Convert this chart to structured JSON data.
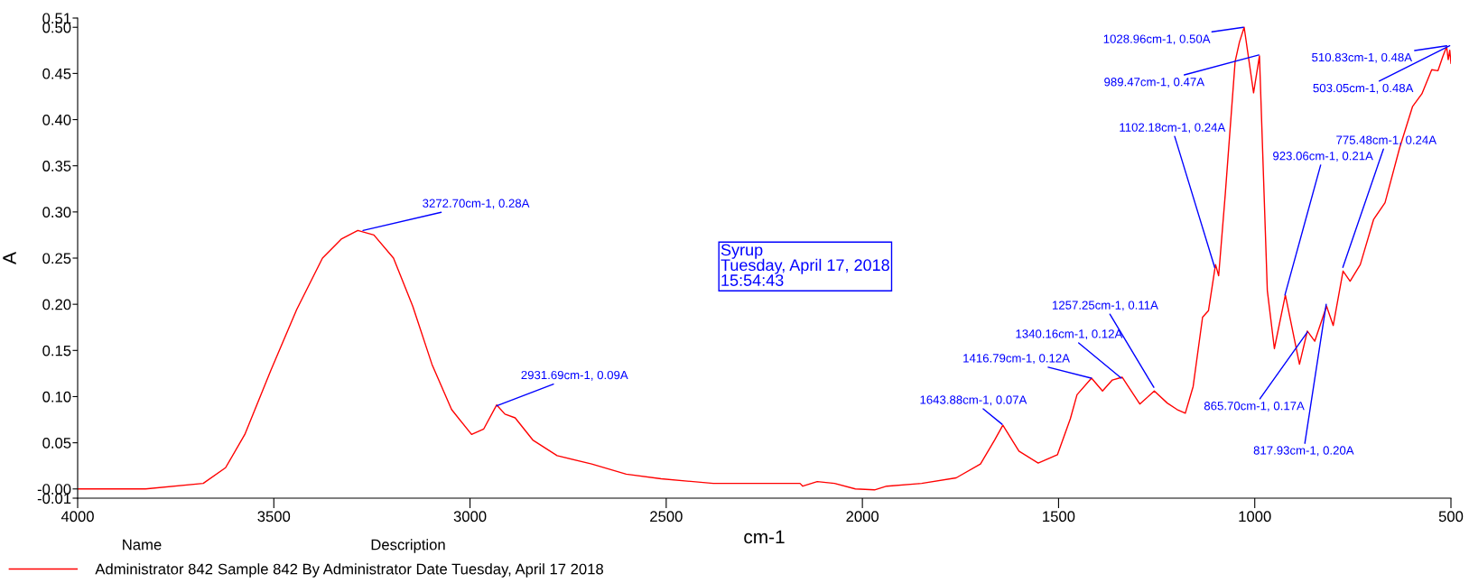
{
  "chart_data": {
    "type": "line",
    "xlabel": "cm-1",
    "ylabel": "A",
    "xlim": [
      4000,
      500
    ],
    "xticks": [
      4000,
      3500,
      3000,
      2500,
      2000,
      1500,
      1000,
      500
    ],
    "ylim": [
      -0.01,
      0.51
    ],
    "yticks": [
      {
        "value": -0.01,
        "label": "-0.01"
      },
      {
        "value": 0,
        "label": "-0.00"
      },
      {
        "value": 0.05,
        "label": "0.05"
      },
      {
        "value": 0.1,
        "label": "0.10"
      },
      {
        "value": 0.15,
        "label": "0.15"
      },
      {
        "value": 0.2,
        "label": "0.20"
      },
      {
        "value": 0.25,
        "label": "0.25"
      },
      {
        "value": 0.3,
        "label": "0.30"
      },
      {
        "value": 0.35,
        "label": "0.35"
      },
      {
        "value": 0.4,
        "label": "0.40"
      },
      {
        "value": 0.45,
        "label": "0.45"
      },
      {
        "value": 0.5,
        "label": "0.50"
      },
      {
        "value": 0.51,
        "label": "0.51"
      }
    ],
    "grid": false,
    "legend": "bottom left",
    "series": [
      {
        "name": "Administrator 842",
        "color": "#ff0000",
        "x": [
          4000,
          3827,
          3680,
          3623,
          3574,
          3508,
          3442,
          3376,
          3327,
          3286,
          3245,
          3195,
          3146,
          3097,
          3047,
          2996,
          2965,
          2932,
          2911,
          2885,
          2840,
          2778,
          2690,
          2602,
          2513,
          2380,
          2159,
          2152,
          2115,
          2071,
          2018,
          1969,
          1938,
          1849,
          1761,
          1699,
          1663,
          1642,
          1601,
          1552,
          1503,
          1470,
          1453,
          1416,
          1388,
          1363,
          1338,
          1293,
          1256,
          1223,
          1198,
          1177,
          1157,
          1133,
          1118,
          1100,
          1092,
          1075,
          1050,
          1039,
          1027,
          1003,
          988,
          968,
          950,
          922,
          886,
          866,
          847,
          817,
          800,
          775,
          757,
          731,
          697,
          668,
          631,
          598,
          574,
          549,
          533,
          521,
          511,
          507,
          503,
          500
        ],
        "values": [
          0.0,
          0.0,
          0.006,
          0.023,
          0.059,
          0.128,
          0.194,
          0.25,
          0.271,
          0.28,
          0.275,
          0.25,
          0.198,
          0.135,
          0.086,
          0.059,
          0.065,
          0.091,
          0.081,
          0.077,
          0.053,
          0.036,
          0.027,
          0.016,
          0.011,
          0.006,
          0.006,
          0.003,
          0.008,
          0.006,
          0.0,
          -0.001,
          0.003,
          0.006,
          0.012,
          0.027,
          0.053,
          0.069,
          0.041,
          0.028,
          0.037,
          0.076,
          0.102,
          0.12,
          0.106,
          0.118,
          0.121,
          0.092,
          0.106,
          0.093,
          0.086,
          0.082,
          0.111,
          0.186,
          0.193,
          0.243,
          0.231,
          0.32,
          0.463,
          0.484,
          0.5,
          0.429,
          0.469,
          0.215,
          0.152,
          0.21,
          0.135,
          0.171,
          0.16,
          0.198,
          0.177,
          0.236,
          0.225,
          0.243,
          0.292,
          0.31,
          0.369,
          0.414,
          0.428,
          0.454,
          0.453,
          0.468,
          0.479,
          0.465,
          0.475,
          0.461
        ]
      }
    ],
    "annotations": [
      {
        "text": "3272.70cm-1, 0.28A",
        "x": 3272.7,
        "y": 0.28
      },
      {
        "text": "2931.69cm-1, 0.09A",
        "x": 2931.69,
        "y": 0.09
      },
      {
        "text": "1643.88cm-1, 0.07A",
        "x": 1643.88,
        "y": 0.07
      },
      {
        "text": "1416.79cm-1, 0.12A",
        "x": 1416.79,
        "y": 0.12
      },
      {
        "text": "1340.16cm-1, 0.12A",
        "x": 1340.16,
        "y": 0.12
      },
      {
        "text": "1257.25cm-1, 0.11A",
        "x": 1257.25,
        "y": 0.11
      },
      {
        "text": "1102.18cm-1, 0.24A",
        "x": 1102.18,
        "y": 0.24
      },
      {
        "text": "1028.96cm-1, 0.50A",
        "x": 1028.96,
        "y": 0.5
      },
      {
        "text": "989.47cm-1, 0.47A",
        "x": 989.47,
        "y": 0.47
      },
      {
        "text": "923.06cm-1, 0.21A",
        "x": 923.06,
        "y": 0.21
      },
      {
        "text": "865.70cm-1, 0.17A",
        "x": 865.7,
        "y": 0.17
      },
      {
        "text": "817.93cm-1, 0.20A",
        "x": 817.93,
        "y": 0.2
      },
      {
        "text": "775.48cm-1, 0.24A",
        "x": 775.48,
        "y": 0.24
      },
      {
        "text": "510.83cm-1, 0.48A",
        "x": 510.83,
        "y": 0.48
      },
      {
        "text": "503.05cm-1, 0.48A",
        "x": 503.05,
        "y": 0.48
      },
      "Syrup\nTuesday, April 17, 2018\n15:54:43",
      "Name",
      "Description",
      "Sample 842 By Administrator Date Tuesday, April 17 2018"
    ]
  }
}
